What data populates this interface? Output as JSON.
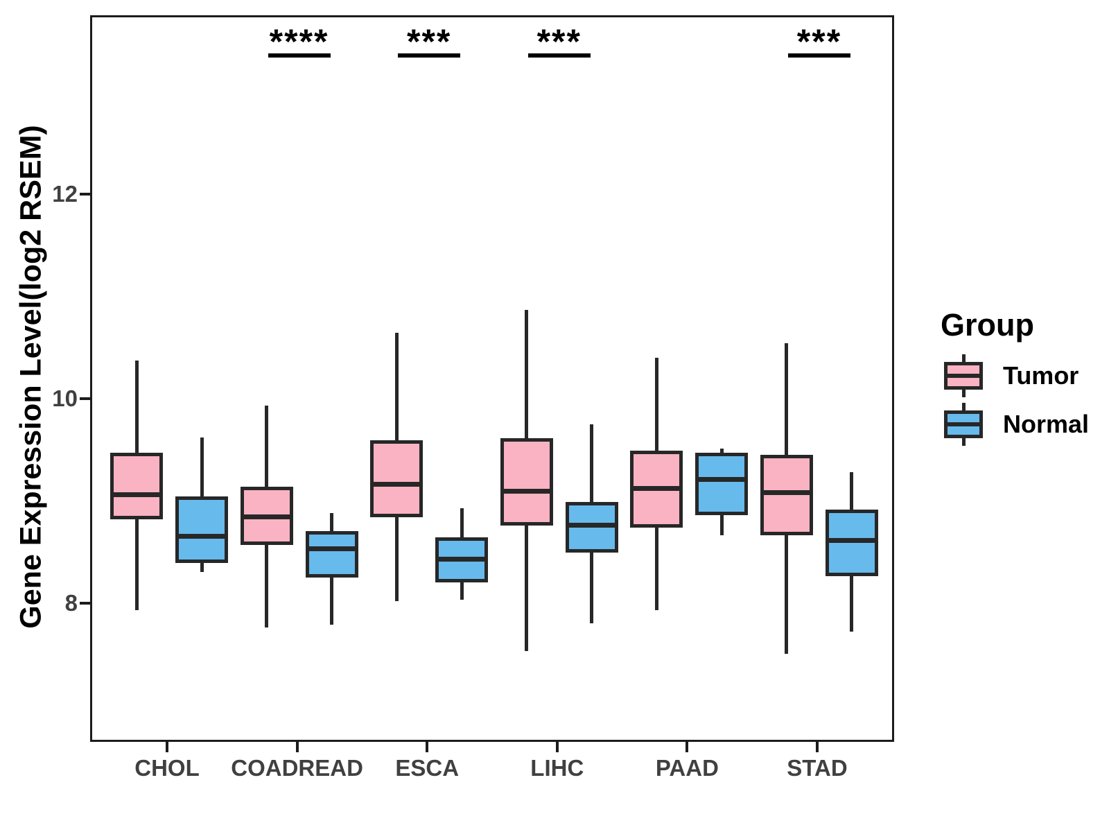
{
  "chart_data": {
    "type": "boxplot",
    "title": "",
    "xlabel": "",
    "ylabel": "Gene Expression Level(log2 RSEM)",
    "ylim": [
      6.64,
      13.75
    ],
    "y_ticks": [
      8,
      10,
      12
    ],
    "grid": false,
    "categories": [
      "CHOL",
      "COADREAD",
      "ESCA",
      "LIHC",
      "PAAD",
      "STAD"
    ],
    "legend": {
      "title": "Group",
      "position": "right",
      "entries": [
        {
          "label": "Tumor",
          "color": "#F9B3C3"
        },
        {
          "label": "Normal",
          "color": "#67BAEC"
        }
      ]
    },
    "significance": [
      {
        "category": "COADREAD",
        "label": "****"
      },
      {
        "category": "ESCA",
        "label": "***"
      },
      {
        "category": "LIHC",
        "label": "***"
      },
      {
        "category": "STAD",
        "label": "***"
      }
    ],
    "series": [
      {
        "name": "Tumor",
        "color": "#F9B3C3",
        "boxes": [
          {
            "category": "CHOL",
            "whisker_low": 7.95,
            "q1": 8.84,
            "median": 9.08,
            "q3": 9.49,
            "whisker_high": 10.39
          },
          {
            "category": "COADREAD",
            "whisker_low": 7.78,
            "q1": 8.59,
            "median": 8.86,
            "q3": 9.16,
            "whisker_high": 9.95
          },
          {
            "category": "ESCA",
            "whisker_low": 8.04,
            "q1": 8.86,
            "median": 9.18,
            "q3": 9.61,
            "whisker_high": 10.66
          },
          {
            "category": "LIHC",
            "whisker_low": 7.55,
            "q1": 8.78,
            "median": 9.11,
            "q3": 9.63,
            "whisker_high": 10.89
          },
          {
            "category": "PAAD",
            "whisker_low": 7.95,
            "q1": 8.76,
            "median": 9.14,
            "q3": 9.51,
            "whisker_high": 10.42
          },
          {
            "category": "STAD",
            "whisker_low": 7.52,
            "q1": 8.68,
            "median": 9.1,
            "q3": 9.47,
            "whisker_high": 10.56
          }
        ]
      },
      {
        "name": "Normal",
        "color": "#67BAEC",
        "boxes": [
          {
            "category": "CHOL",
            "whisker_low": 8.32,
            "q1": 8.41,
            "median": 8.67,
            "q3": 9.06,
            "whisker_high": 9.64
          },
          {
            "category": "COADREAD",
            "whisker_low": 7.81,
            "q1": 8.27,
            "median": 8.55,
            "q3": 8.72,
            "whisker_high": 8.9
          },
          {
            "category": "ESCA",
            "whisker_low": 8.05,
            "q1": 8.22,
            "median": 8.45,
            "q3": 8.66,
            "whisker_high": 8.95
          },
          {
            "category": "LIHC",
            "whisker_low": 7.82,
            "q1": 8.51,
            "median": 8.78,
            "q3": 9.01,
            "whisker_high": 9.77
          },
          {
            "category": "PAAD",
            "whisker_low": 8.68,
            "q1": 8.88,
            "median": 9.23,
            "q3": 9.49,
            "whisker_high": 9.53
          },
          {
            "category": "STAD",
            "whisker_low": 7.74,
            "q1": 8.28,
            "median": 8.63,
            "q3": 8.93,
            "whisker_high": 9.3
          }
        ]
      }
    ]
  }
}
